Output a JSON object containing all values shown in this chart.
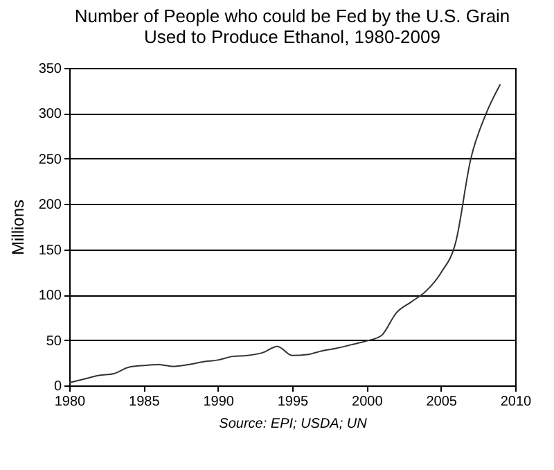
{
  "chart_data": {
    "type": "line",
    "title": "Number of People who could be Fed by the U.S. Grain Used to Produce Ethanol, 1980-2009",
    "ylabel": "Millions",
    "annotations": [
      "Source: EPI; USDA; UN"
    ],
    "x": [
      1980,
      1981,
      1982,
      1983,
      1984,
      1985,
      1986,
      1987,
      1988,
      1989,
      1990,
      1991,
      1992,
      1993,
      1994,
      1995,
      1996,
      1997,
      1998,
      1999,
      2000,
      2001,
      2002,
      2003,
      2004,
      2005,
      2006,
      2007,
      2008,
      2009
    ],
    "series": [
      {
        "color": "#333333",
        "values": [
          3,
          7,
          11,
          13,
          20,
          22,
          23,
          21,
          23,
          26,
          28,
          32,
          33,
          36,
          43,
          33,
          34,
          38,
          41,
          45,
          49,
          55,
          80,
          92,
          104,
          124,
          158,
          249,
          298,
          332
        ]
      }
    ],
    "xlim": [
      1980,
      2010
    ],
    "xticks": [
      1980,
      1985,
      1990,
      1995,
      2000,
      2005,
      2010
    ],
    "ylim": [
      0,
      350
    ],
    "yticks": [
      0,
      50,
      100,
      150,
      200,
      250,
      300,
      350
    ],
    "grid": "y",
    "marker": "none",
    "line_style": "solid"
  }
}
